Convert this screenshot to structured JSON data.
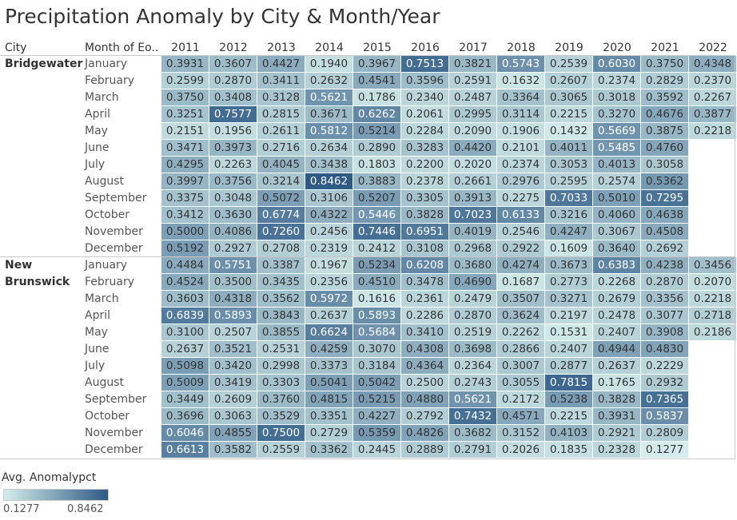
{
  "title": "Precipitation Anomaly by City & Month/Year",
  "headers": {
    "city": "City",
    "month": "Month of Eo.."
  },
  "legend": {
    "title": "Avg. Anomalypct",
    "min_label": "0.1277",
    "max_label": "0.8462"
  },
  "chart_data": {
    "type": "heatmap",
    "title": "Precipitation Anomaly by City & Month/Year",
    "measure": "Avg. Anomalypct",
    "color_min": 0.1277,
    "color_max": 0.8462,
    "color_low": "#d4ecea",
    "color_high": "#2e5a87",
    "years": [
      "2011",
      "2012",
      "2013",
      "2014",
      "2015",
      "2016",
      "2017",
      "2018",
      "2019",
      "2020",
      "2021",
      "2022"
    ],
    "months": [
      "January",
      "February",
      "March",
      "April",
      "May",
      "June",
      "July",
      "August",
      "September",
      "October",
      "November",
      "December"
    ],
    "cities": [
      {
        "name": "Bridgewater",
        "name_lines": [
          "Bridgewater"
        ],
        "values": [
          [
            "0.3931",
            "0.3607",
            "0.4427",
            "0.1940",
            "0.3967",
            "0.7513",
            "0.3821",
            "0.5743",
            "0.2539",
            "0.6030",
            "0.3750",
            "0.4348"
          ],
          [
            "0.2599",
            "0.2870",
            "0.3411",
            "0.2632",
            "0.4541",
            "0.3596",
            "0.2591",
            "0.1632",
            "0.2607",
            "0.2374",
            "0.2829",
            "0.2370"
          ],
          [
            "0.3750",
            "0.3408",
            "0.3128",
            "0.5621",
            "0.1786",
            "0.2340",
            "0.2487",
            "0.3364",
            "0.3065",
            "0.3018",
            "0.3592",
            "0.2267"
          ],
          [
            "0.3251",
            "0.7577",
            "0.2815",
            "0.3671",
            "0.6262",
            "0.2061",
            "0.2995",
            "0.3114",
            "0.2215",
            "0.3270",
            "0.4676",
            "0.3877"
          ],
          [
            "0.2151",
            "0.1956",
            "0.2611",
            "0.5812",
            "0.5214",
            "0.2284",
            "0.2090",
            "0.1906",
            "0.1432",
            "0.5669",
            "0.3875",
            "0.2218"
          ],
          [
            "0.3471",
            "0.3973",
            "0.2716",
            "0.2634",
            "0.2890",
            "0.3283",
            "0.4420",
            "0.2101",
            "0.4011",
            "0.5485",
            "0.4760",
            null
          ],
          [
            "0.4295",
            "0.2263",
            "0.4045",
            "0.3438",
            "0.1803",
            "0.2200",
            "0.2020",
            "0.2374",
            "0.3053",
            "0.4013",
            "0.3058",
            null
          ],
          [
            "0.3997",
            "0.3756",
            "0.3214",
            "0.8462",
            "0.3883",
            "0.2378",
            "0.2661",
            "0.2976",
            "0.2595",
            "0.2574",
            "0.5362",
            null
          ],
          [
            "0.3375",
            "0.3048",
            "0.5072",
            "0.3106",
            "0.5207",
            "0.3305",
            "0.3913",
            "0.2275",
            "0.7033",
            "0.5010",
            "0.7295",
            null
          ],
          [
            "0.3412",
            "0.3630",
            "0.6774",
            "0.4322",
            "0.5446",
            "0.3828",
            "0.7023",
            "0.6133",
            "0.3216",
            "0.4060",
            "0.4638",
            null
          ],
          [
            "0.5000",
            "0.4086",
            "0.7260",
            "0.2456",
            "0.7446",
            "0.6951",
            "0.4019",
            "0.2546",
            "0.4247",
            "0.3067",
            "0.4508",
            null
          ],
          [
            "0.5192",
            "0.2927",
            "0.2708",
            "0.2319",
            "0.2412",
            "0.3108",
            "0.2968",
            "0.2922",
            "0.1609",
            "0.3640",
            "0.2692",
            null
          ]
        ]
      },
      {
        "name": "New Brunswick",
        "name_lines": [
          "New",
          "Brunswick"
        ],
        "values": [
          [
            "0.4484",
            "0.5751",
            "0.3387",
            "0.1967",
            "0.5234",
            "0.6208",
            "0.3680",
            "0.4274",
            "0.3673",
            "0.6383",
            "0.4238",
            "0.3456"
          ],
          [
            "0.4524",
            "0.3500",
            "0.3435",
            "0.2356",
            "0.4510",
            "0.3478",
            "0.4690",
            "0.1687",
            "0.2773",
            "0.2268",
            "0.2870",
            "0.2070"
          ],
          [
            "0.3603",
            "0.4318",
            "0.3562",
            "0.5972",
            "0.1616",
            "0.2361",
            "0.2479",
            "0.3507",
            "0.3271",
            "0.2679",
            "0.3356",
            "0.2218"
          ],
          [
            "0.6839",
            "0.5893",
            "0.3843",
            "0.2637",
            "0.5893",
            "0.2286",
            "0.2870",
            "0.3624",
            "0.2197",
            "0.2478",
            "0.3077",
            "0.2718"
          ],
          [
            "0.3100",
            "0.2507",
            "0.3855",
            "0.6624",
            "0.5684",
            "0.3410",
            "0.2519",
            "0.2262",
            "0.1531",
            "0.2407",
            "0.3908",
            "0.2186"
          ],
          [
            "0.2637",
            "0.3521",
            "0.2531",
            "0.4259",
            "0.3070",
            "0.4308",
            "0.3698",
            "0.2866",
            "0.2407",
            "0.4944",
            "0.4830",
            null
          ],
          [
            "0.5098",
            "0.3420",
            "0.2998",
            "0.3373",
            "0.3184",
            "0.4364",
            "0.2364",
            "0.3007",
            "0.2877",
            "0.2637",
            "0.2229",
            null
          ],
          [
            "0.5009",
            "0.3419",
            "0.3303",
            "0.5041",
            "0.5042",
            "0.2500",
            "0.2743",
            "0.3055",
            "0.7815",
            "0.1765",
            "0.2932",
            null
          ],
          [
            "0.3449",
            "0.2609",
            "0.3760",
            "0.4815",
            "0.5215",
            "0.4880",
            "0.5621",
            "0.2172",
            "0.5238",
            "0.3828",
            "0.7365",
            null
          ],
          [
            "0.3696",
            "0.3063",
            "0.3529",
            "0.3351",
            "0.4227",
            "0.2792",
            "0.7432",
            "0.4571",
            "0.2215",
            "0.3931",
            "0.5837",
            null
          ],
          [
            "0.6046",
            "0.4855",
            "0.7500",
            "0.2729",
            "0.5359",
            "0.4826",
            "0.3682",
            "0.3152",
            "0.4103",
            "0.2921",
            "0.2809",
            null
          ],
          [
            "0.6613",
            "0.3582",
            "0.2559",
            "0.3362",
            "0.2445",
            "0.2889",
            "0.2791",
            "0.2026",
            "0.1835",
            "0.2328",
            "0.1277",
            null
          ]
        ]
      }
    ]
  }
}
